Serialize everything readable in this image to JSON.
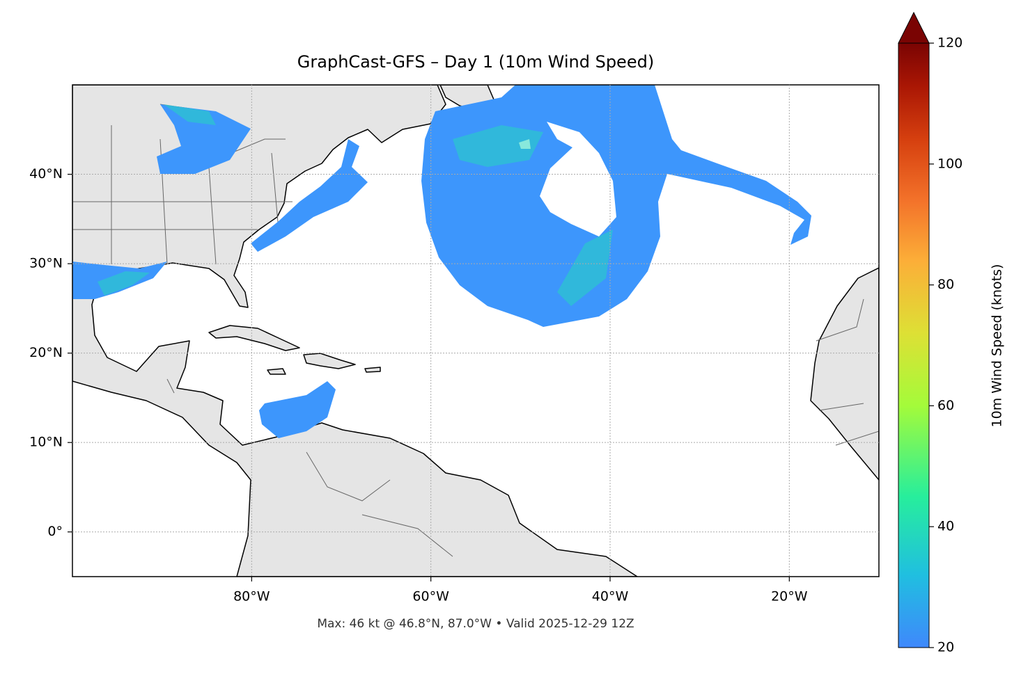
{
  "chart_data": {
    "type": "map",
    "title": "GraphCast-GFS – Day 1 (10m Wind Speed)",
    "footnote": "Max: 46 kt @ 46.8°N, 87.0°W • Valid 2025-12-29 12Z",
    "xlim": [
      -100,
      -10
    ],
    "ylim": [
      -5,
      50
    ],
    "xticks": [
      {
        "value": -80,
        "label": "80°W"
      },
      {
        "value": -60,
        "label": "60°W"
      },
      {
        "value": -40,
        "label": "40°W"
      },
      {
        "value": -20,
        "label": "20°W"
      }
    ],
    "yticks": [
      {
        "value": 0,
        "label": "0°"
      },
      {
        "value": 10,
        "label": "10°N"
      },
      {
        "value": 20,
        "label": "20°N"
      },
      {
        "value": 30,
        "label": "30°N"
      },
      {
        "value": 40,
        "label": "40°N"
      }
    ],
    "grid": true,
    "colorbar": {
      "label": "10m Wind Speed (knots)",
      "lim": [
        20,
        120
      ],
      "ticks": [
        20,
        40,
        60,
        80,
        100,
        120
      ],
      "extend": "max"
    }
  }
}
